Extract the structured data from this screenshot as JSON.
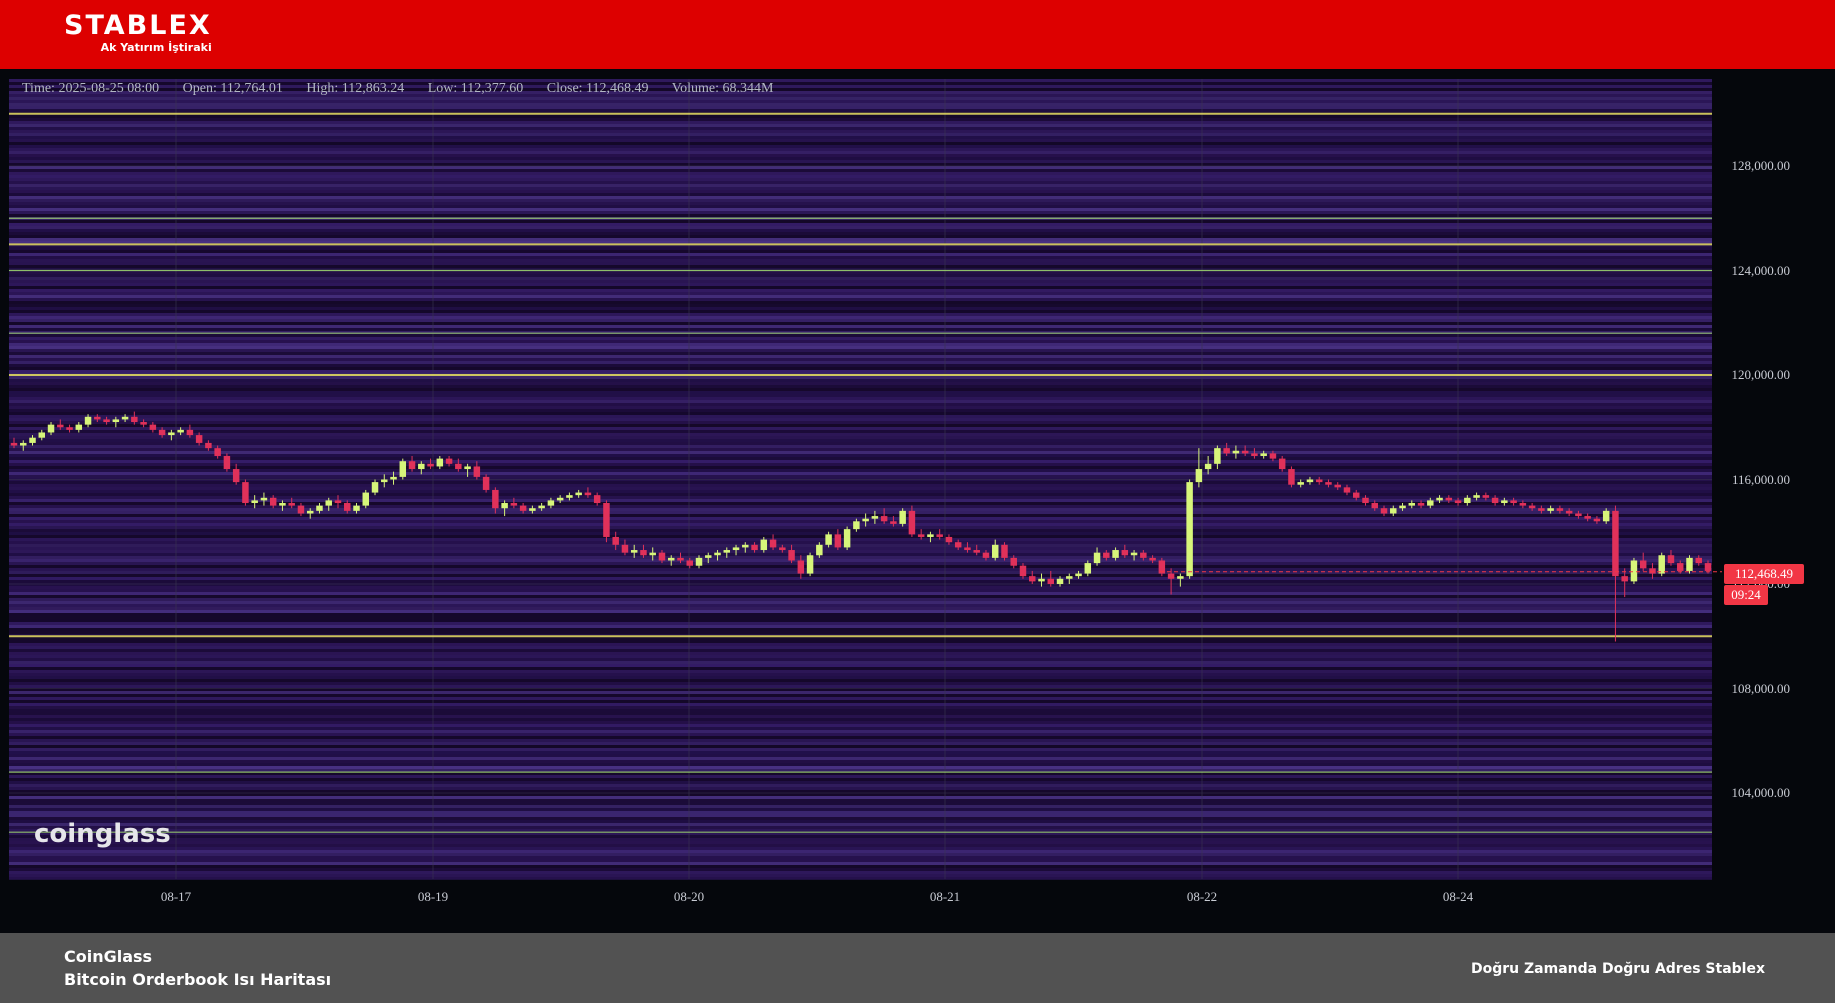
{
  "header": {
    "logo_text": "STABLEX",
    "logo_subtext": "Ak Yatırım İştiraki",
    "background_color": "#dd0000"
  },
  "ohlc": {
    "time": "Time: 2025-08-25 08:00",
    "open": "Open: 112,764.01",
    "high": "High: 112,863.24",
    "low": "Low: 112,377.60",
    "close": "Close: 112,468.49",
    "volume": "Volume: 68.344M"
  },
  "watermark": "coinglass",
  "current_price": {
    "price_label": "112,468.49",
    "countdown": "09:24",
    "color": "#f23645"
  },
  "chart_data": {
    "type": "heatmap",
    "title": "",
    "ylim": [
      100000,
      130000
    ],
    "yticks": [
      104000,
      108000,
      112000,
      116000,
      120000,
      124000,
      128000
    ],
    "ytick_labels": [
      "104,000.00",
      "108,000.00",
      "112,000.00",
      "116,000.00",
      "120,000.00",
      "124,000.00",
      "128,000.00"
    ],
    "xticks": [
      "08-17",
      "08-19",
      "08-20",
      "08-21",
      "08-22",
      "08-24"
    ],
    "heatmap_colors": {
      "low": "#2a1250",
      "mid": "#3d2a7a",
      "high_teal": "#3aa0a0",
      "peak_yellow": "#e8e060"
    },
    "liquidity_levels": [
      {
        "price": 130000,
        "strength": "high"
      },
      {
        "price": 126000,
        "strength": "medium"
      },
      {
        "price": 125000,
        "strength": "high"
      },
      {
        "price": 124000,
        "strength": "medium"
      },
      {
        "price": 121600,
        "strength": "medium"
      },
      {
        "price": 120000,
        "strength": "high"
      },
      {
        "price": 110000,
        "strength": "high"
      },
      {
        "price": 104800,
        "strength": "medium"
      },
      {
        "price": 102500,
        "strength": "medium"
      }
    ],
    "candle_colors": {
      "up": "#d7f57a",
      "down": "#e0315a"
    },
    "candles": [
      [
        117400,
        117600,
        117200,
        117300
      ],
      [
        117300,
        117500,
        117100,
        117400
      ],
      [
        117400,
        117700,
        117300,
        117600
      ],
      [
        117600,
        117900,
        117500,
        117800
      ],
      [
        117800,
        118200,
        117700,
        118100
      ],
      [
        118100,
        118300,
        117900,
        118000
      ],
      [
        118000,
        118100,
        117800,
        117900
      ],
      [
        117900,
        118200,
        117800,
        118100
      ],
      [
        118100,
        118500,
        118000,
        118400
      ],
      [
        118400,
        118500,
        118200,
        118300
      ],
      [
        118300,
        118400,
        118100,
        118200
      ],
      [
        118200,
        118400,
        118000,
        118300
      ],
      [
        118300,
        118500,
        118200,
        118400
      ],
      [
        118400,
        118600,
        118100,
        118200
      ],
      [
        118200,
        118300,
        118000,
        118100
      ],
      [
        118100,
        118200,
        117800,
        117900
      ],
      [
        117900,
        118000,
        117600,
        117700
      ],
      [
        117700,
        117900,
        117500,
        117800
      ],
      [
        117800,
        118000,
        117700,
        117900
      ],
      [
        117900,
        118100,
        117600,
        117700
      ],
      [
        117700,
        117800,
        117300,
        117400
      ],
      [
        117400,
        117500,
        117100,
        117200
      ],
      [
        117200,
        117300,
        116800,
        116900
      ],
      [
        116900,
        117000,
        116300,
        116400
      ],
      [
        116400,
        116600,
        115800,
        115900
      ],
      [
        115900,
        116000,
        115000,
        115100
      ],
      [
        115100,
        115400,
        114900,
        115200
      ],
      [
        115200,
        115500,
        115000,
        115300
      ],
      [
        115300,
        115400,
        114900,
        115000
      ],
      [
        115000,
        115200,
        114800,
        115100
      ],
      [
        115100,
        115300,
        114900,
        115000
      ],
      [
        115000,
        115100,
        114600,
        114700
      ],
      [
        114700,
        114900,
        114500,
        114800
      ],
      [
        114800,
        115100,
        114700,
        115000
      ],
      [
        115000,
        115300,
        114800,
        115200
      ],
      [
        115200,
        115400,
        114900,
        115100
      ],
      [
        115100,
        115200,
        114700,
        114800
      ],
      [
        114800,
        115100,
        114700,
        115000
      ],
      [
        115000,
        115600,
        114900,
        115500
      ],
      [
        115500,
        116000,
        115400,
        115900
      ],
      [
        115900,
        116200,
        115700,
        116000
      ],
      [
        116000,
        116300,
        115800,
        116100
      ],
      [
        116100,
        116800,
        116000,
        116700
      ],
      [
        116700,
        116900,
        116300,
        116400
      ],
      [
        116400,
        116700,
        116200,
        116600
      ],
      [
        116600,
        116800,
        116400,
        116500
      ],
      [
        116500,
        116900,
        116400,
        116800
      ],
      [
        116800,
        116900,
        116500,
        116600
      ],
      [
        116600,
        116800,
        116300,
        116400
      ],
      [
        116400,
        116600,
        116100,
        116500
      ],
      [
        116500,
        116700,
        116000,
        116100
      ],
      [
        116100,
        116200,
        115500,
        115600
      ],
      [
        115600,
        115700,
        114700,
        114900
      ],
      [
        114900,
        115200,
        114600,
        115100
      ],
      [
        115100,
        115300,
        114900,
        115000
      ],
      [
        115000,
        115100,
        114700,
        114800
      ],
      [
        114800,
        115000,
        114700,
        114900
      ],
      [
        114900,
        115100,
        114800,
        115000
      ],
      [
        115000,
        115300,
        114900,
        115200
      ],
      [
        115200,
        115400,
        115100,
        115300
      ],
      [
        115300,
        115500,
        115200,
        115400
      ],
      [
        115400,
        115600,
        115300,
        115500
      ],
      [
        115500,
        115700,
        115300,
        115400
      ],
      [
        115400,
        115500,
        115000,
        115100
      ],
      [
        115100,
        115200,
        113600,
        113800
      ],
      [
        113800,
        114000,
        113300,
        113500
      ],
      [
        113500,
        113700,
        113100,
        113200
      ],
      [
        113200,
        113500,
        113000,
        113300
      ],
      [
        113300,
        113500,
        113000,
        113100
      ],
      [
        113100,
        113400,
        112900,
        113200
      ],
      [
        113200,
        113300,
        112800,
        112900
      ],
      [
        112900,
        113100,
        112700,
        113000
      ],
      [
        113000,
        113200,
        112800,
        112900
      ],
      [
        112900,
        113000,
        112600,
        112700
      ],
      [
        112700,
        113100,
        112600,
        113000
      ],
      [
        113000,
        113200,
        112800,
        113100
      ],
      [
        113100,
        113300,
        112900,
        113200
      ],
      [
        113200,
        113400,
        113000,
        113300
      ],
      [
        113300,
        113500,
        113100,
        113400
      ],
      [
        113400,
        113600,
        113200,
        113500
      ],
      [
        113500,
        113600,
        113200,
        113300
      ],
      [
        113300,
        113800,
        113200,
        113700
      ],
      [
        113700,
        113900,
        113300,
        113400
      ],
      [
        113400,
        113500,
        113200,
        113300
      ],
      [
        113300,
        113500,
        112800,
        112900
      ],
      [
        112900,
        113100,
        112200,
        112400
      ],
      [
        112400,
        113200,
        112300,
        113100
      ],
      [
        113100,
        113600,
        113000,
        113500
      ],
      [
        113500,
        114000,
        113400,
        113900
      ],
      [
        113900,
        114100,
        113300,
        113400
      ],
      [
        113400,
        114200,
        113300,
        114100
      ],
      [
        114100,
        114500,
        114000,
        114400
      ],
      [
        114400,
        114700,
        114200,
        114500
      ],
      [
        114500,
        114800,
        114300,
        114600
      ],
      [
        114600,
        114900,
        114300,
        114400
      ],
      [
        114400,
        114600,
        114200,
        114300
      ],
      [
        114300,
        114900,
        114200,
        114800
      ],
      [
        114800,
        115000,
        113800,
        113900
      ],
      [
        113900,
        114100,
        113700,
        113800
      ],
      [
        113800,
        114000,
        113600,
        113900
      ],
      [
        113900,
        114100,
        113700,
        113800
      ],
      [
        113800,
        113900,
        113500,
        113600
      ],
      [
        113600,
        113700,
        113300,
        113400
      ],
      [
        113400,
        113600,
        113200,
        113300
      ],
      [
        113300,
        113500,
        113100,
        113200
      ],
      [
        113200,
        113300,
        112900,
        113000
      ],
      [
        113000,
        113700,
        112900,
        113500
      ],
      [
        113500,
        113600,
        112900,
        113000
      ],
      [
        113000,
        113100,
        112600,
        112700
      ],
      [
        112700,
        112800,
        112200,
        112300
      ],
      [
        112300,
        112500,
        112000,
        112100
      ],
      [
        112100,
        112400,
        111900,
        112200
      ],
      [
        112200,
        112500,
        111900,
        112000
      ],
      [
        112000,
        112300,
        111900,
        112200
      ],
      [
        112200,
        112400,
        112000,
        112300
      ],
      [
        112300,
        112500,
        112200,
        112400
      ],
      [
        112400,
        112900,
        112300,
        112800
      ],
      [
        112800,
        113400,
        112700,
        113200
      ],
      [
        113200,
        113300,
        112900,
        113000
      ],
      [
        113000,
        113400,
        112900,
        113300
      ],
      [
        113300,
        113500,
        113000,
        113100
      ],
      [
        113100,
        113300,
        112900,
        113200
      ],
      [
        113200,
        113300,
        112900,
        113000
      ],
      [
        113000,
        113100,
        112800,
        112900
      ],
      [
        112900,
        113000,
        112300,
        112400
      ],
      [
        112400,
        112600,
        111600,
        112200
      ],
      [
        112200,
        112400,
        111900,
        112300
      ],
      [
        112300,
        116000,
        112200,
        115900
      ],
      [
        115900,
        117200,
        115700,
        116400
      ],
      [
        116400,
        116900,
        116200,
        116600
      ],
      [
        116600,
        117300,
        116400,
        117200
      ],
      [
        117200,
        117400,
        116900,
        117000
      ],
      [
        117000,
        117300,
        116800,
        117100
      ],
      [
        117100,
        117300,
        116900,
        117000
      ],
      [
        117000,
        117200,
        116800,
        116900
      ],
      [
        116900,
        117100,
        116800,
        117000
      ],
      [
        117000,
        117100,
        116700,
        116800
      ],
      [
        116800,
        116900,
        116300,
        116400
      ],
      [
        116400,
        116500,
        115700,
        115800
      ],
      [
        115800,
        116000,
        115700,
        115900
      ],
      [
        115900,
        116100,
        115800,
        116000
      ],
      [
        116000,
        116100,
        115800,
        115900
      ],
      [
        115900,
        116000,
        115700,
        115800
      ],
      [
        115800,
        115900,
        115600,
        115700
      ],
      [
        115700,
        115800,
        115400,
        115500
      ],
      [
        115500,
        115600,
        115200,
        115300
      ],
      [
        115300,
        115400,
        115000,
        115100
      ],
      [
        115100,
        115200,
        114800,
        114900
      ],
      [
        114900,
        115000,
        114600,
        114700
      ],
      [
        114700,
        115000,
        114600,
        114900
      ],
      [
        114900,
        115100,
        114800,
        115000
      ],
      [
        115000,
        115200,
        114900,
        115100
      ],
      [
        115100,
        115200,
        114900,
        115000
      ],
      [
        115000,
        115300,
        114900,
        115200
      ],
      [
        115200,
        115400,
        115100,
        115300
      ],
      [
        115300,
        115400,
        115100,
        115200
      ],
      [
        115200,
        115300,
        115000,
        115100
      ],
      [
        115100,
        115400,
        115000,
        115300
      ],
      [
        115300,
        115500,
        115200,
        115400
      ],
      [
        115400,
        115500,
        115200,
        115300
      ],
      [
        115300,
        115400,
        115000,
        115100
      ],
      [
        115100,
        115300,
        115000,
        115200
      ],
      [
        115200,
        115300,
        115000,
        115100
      ],
      [
        115100,
        115200,
        114900,
        115000
      ],
      [
        115000,
        115100,
        114800,
        114900
      ],
      [
        114900,
        115000,
        114700,
        114800
      ],
      [
        114800,
        115000,
        114700,
        114900
      ],
      [
        114900,
        115000,
        114700,
        114800
      ],
      [
        114800,
        114900,
        114600,
        114700
      ],
      [
        114700,
        114800,
        114500,
        114600
      ],
      [
        114600,
        114700,
        114400,
        114500
      ],
      [
        114500,
        114600,
        114300,
        114400
      ],
      [
        114400,
        114900,
        114300,
        114800
      ],
      [
        114800,
        115000,
        109800,
        112300
      ],
      [
        112300,
        112600,
        111500,
        112100
      ],
      [
        112100,
        113000,
        112000,
        112900
      ],
      [
        112900,
        113200,
        112500,
        112600
      ],
      [
        112600,
        112800,
        112200,
        112400
      ],
      [
        112400,
        113200,
        112300,
        113100
      ],
      [
        113100,
        113300,
        112700,
        112800
      ],
      [
        112800,
        112900,
        112400,
        112500
      ],
      [
        112500,
        113100,
        112400,
        113000
      ],
      [
        113000,
        113100,
        112700,
        112800
      ],
      [
        112800,
        112900,
        112400,
        112500
      ]
    ]
  },
  "footer": {
    "source": "CoinGlass",
    "title": "Bitcoin Orderbook Isı Haritası",
    "slogan": "Doğru Zamanda Doğru Adres Stablex"
  }
}
